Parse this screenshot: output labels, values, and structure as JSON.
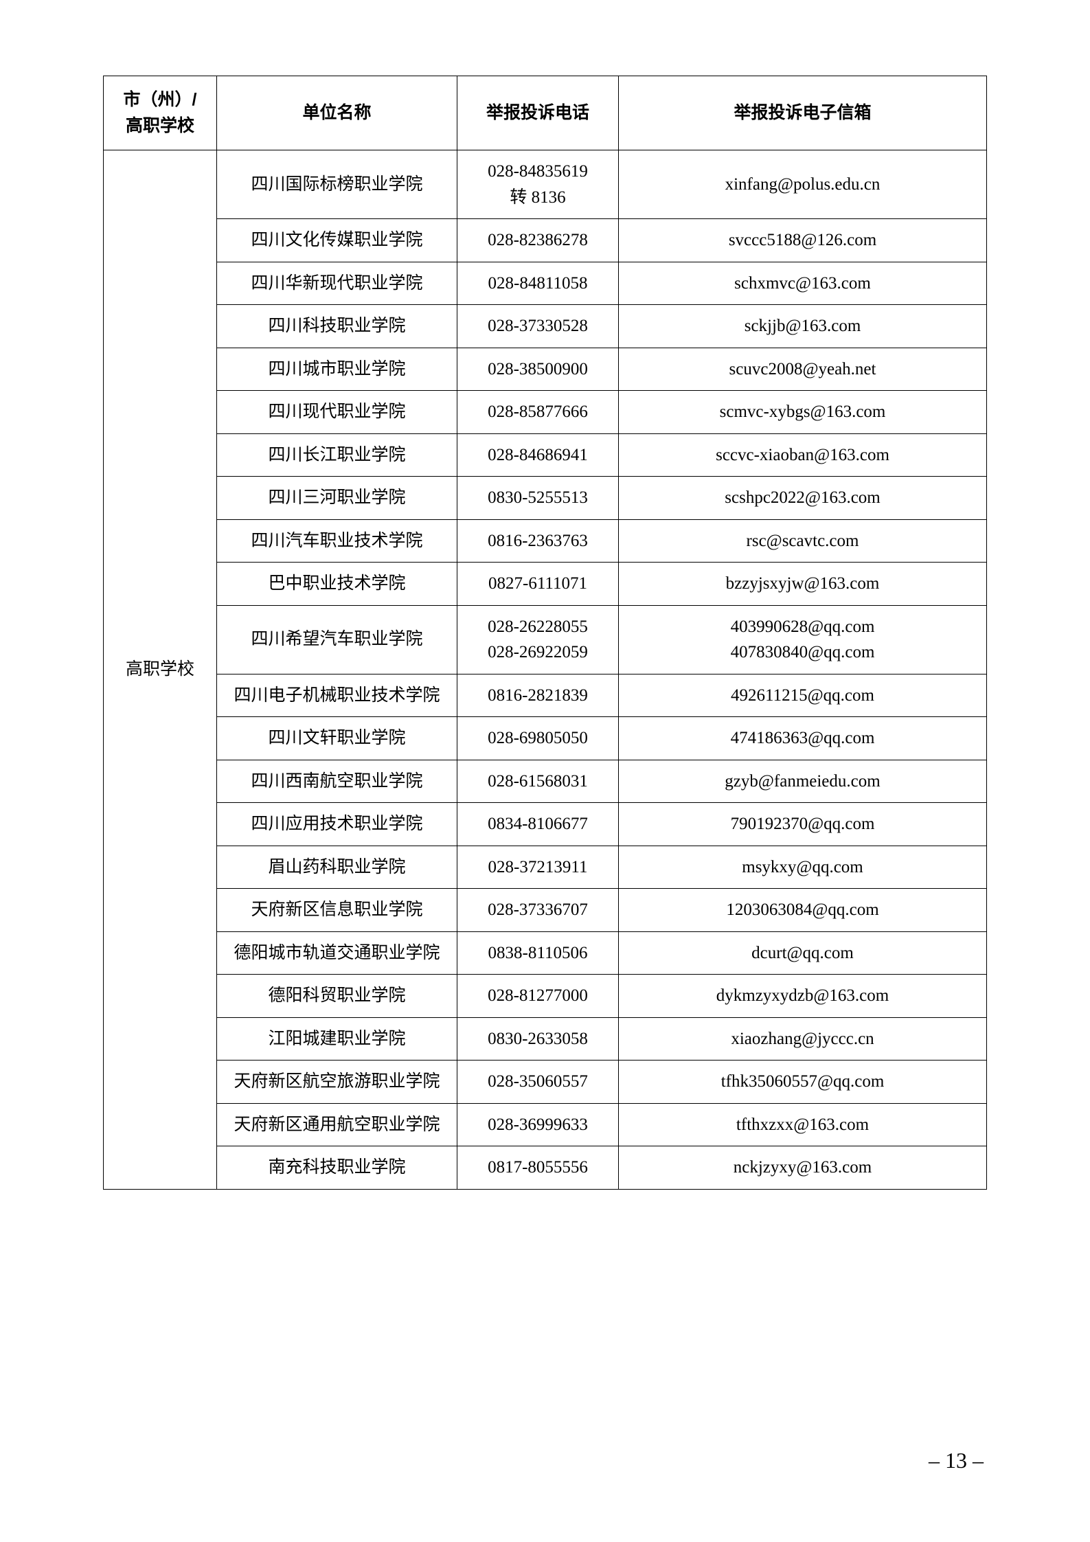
{
  "headers": {
    "col1": "市（州）/\n高职学校",
    "col2": "单位名称",
    "col3": "举报投诉电话",
    "col4": "举报投诉电子信箱"
  },
  "category": "高职学校",
  "rows": [
    {
      "name": "四川国际标榜职业学院",
      "phone": "028-84835619\n转 8136",
      "email": "xinfang@polus.edu.cn"
    },
    {
      "name": "四川文化传媒职业学院",
      "phone": "028-82386278",
      "email": "svccc5188@126.com"
    },
    {
      "name": "四川华新现代职业学院",
      "phone": "028-84811058",
      "email": "schxmvc@163.com"
    },
    {
      "name": "四川科技职业学院",
      "phone": "028-37330528",
      "email": "sckjjb@163.com"
    },
    {
      "name": "四川城市职业学院",
      "phone": "028-38500900",
      "email": "scuvc2008@yeah.net"
    },
    {
      "name": "四川现代职业学院",
      "phone": "028-85877666",
      "email": "scmvc-xybgs@163.com"
    },
    {
      "name": "四川长江职业学院",
      "phone": "028-84686941",
      "email": "sccvc-xiaoban@163.com"
    },
    {
      "name": "四川三河职业学院",
      "phone": "0830-5255513",
      "email": "scshpc2022@163.com"
    },
    {
      "name": "四川汽车职业技术学院",
      "phone": "0816-2363763",
      "email": "rsc@scavtc.com"
    },
    {
      "name": "巴中职业技术学院",
      "phone": "0827-6111071",
      "email": "bzzyjsxyjw@163.com"
    },
    {
      "name": "四川希望汽车职业学院",
      "phone": "028-26228055\n028-26922059",
      "email": "403990628@qq.com\n407830840@qq.com"
    },
    {
      "name": "四川电子机械职业技术学院",
      "phone": "0816-2821839",
      "email": "492611215@qq.com"
    },
    {
      "name": "四川文轩职业学院",
      "phone": "028-69805050",
      "email": "474186363@qq.com"
    },
    {
      "name": "四川西南航空职业学院",
      "phone": "028-61568031",
      "email": "gzyb@fanmeiedu.com"
    },
    {
      "name": "四川应用技术职业学院",
      "phone": "0834-8106677",
      "email": "790192370@qq.com"
    },
    {
      "name": "眉山药科职业学院",
      "phone": "028-37213911",
      "email": "msykxy@qq.com"
    },
    {
      "name": "天府新区信息职业学院",
      "phone": "028-37336707",
      "email": "1203063084@qq.com"
    },
    {
      "name": "德阳城市轨道交通职业学院",
      "phone": "0838-8110506",
      "email": "dcurt@qq.com"
    },
    {
      "name": "德阳科贸职业学院",
      "phone": "028-81277000",
      "email": "dykmzyxydzb@163.com"
    },
    {
      "name": "江阳城建职业学院",
      "phone": "0830-2633058",
      "email": "xiaozhang@jyccc.cn"
    },
    {
      "name": "天府新区航空旅游职业学院",
      "phone": "028-35060557",
      "email": "tfhk35060557@qq.com"
    },
    {
      "name": "天府新区通用航空职业学院",
      "phone": "028-36999633",
      "email": "tfthxzxx@163.com"
    },
    {
      "name": "南充科技职业学院",
      "phone": "0817-8055556",
      "email": "nckjzyxy@163.com"
    }
  ],
  "pageNumber": "– 13 –"
}
